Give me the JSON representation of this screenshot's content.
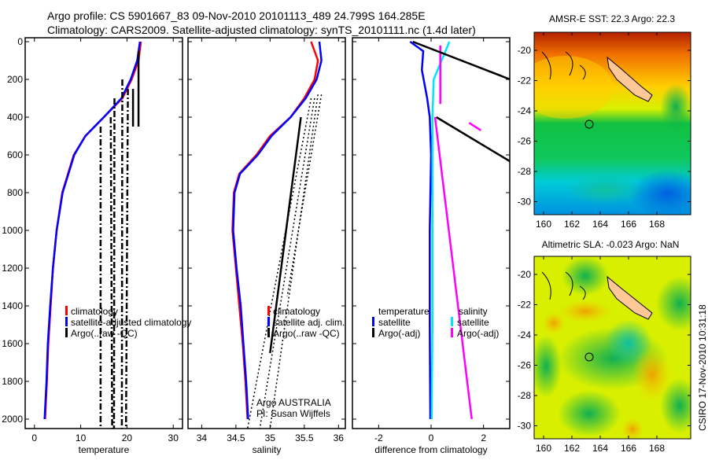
{
  "header": {
    "line1": "Argo profile: CS 5901667_83 09-Nov-2010 20101113_489 24.799S 164.285E",
    "line2": "Climatology: CARS2009. Satellite-adjusted climatology: synTS_20101111.nc (1.4d later)"
  },
  "credit": "CSIRO 17-Nov-2010 10:31:18",
  "colors": {
    "clim": "#ff0000",
    "sat": "#0000ff",
    "argo": "#000000",
    "sal_sat": "#00e5ff",
    "sal_argo": "#ff00ff"
  },
  "chart_data": [
    {
      "type": "line",
      "xlabel": "temperature",
      "xlim": [
        -2,
        32
      ],
      "ylim": [
        2050,
        0
      ],
      "xticks": [
        "0",
        "10",
        "20",
        "30"
      ],
      "xtick_values": [
        0,
        10,
        20,
        30
      ],
      "yticks": [
        "0",
        "200",
        "400",
        "600",
        "800",
        "1000",
        "1200",
        "1400",
        "1600",
        "1800",
        "2000"
      ],
      "ytick_values": [
        0,
        200,
        400,
        600,
        800,
        1000,
        1200,
        1400,
        1600,
        1800,
        2000
      ],
      "legend": [
        "climatology",
        "satellite-adjusted climatology",
        "Argo(..raw -QC)"
      ],
      "series": [
        {
          "name": "climatology",
          "color": "#ff0000",
          "x": [
            23,
            22.5,
            21,
            19,
            15,
            11,
            8.5,
            6,
            4.8,
            4,
            3.5,
            3,
            2.7,
            2.3
          ],
          "y": [
            0,
            100,
            200,
            300,
            400,
            500,
            600,
            800,
            1000,
            1200,
            1400,
            1600,
            1800,
            2000
          ]
        },
        {
          "name": "satellite-adjusted climatology",
          "color": "#0000ff",
          "x": [
            22.8,
            22.2,
            20.8,
            18.8,
            15,
            11,
            8.6,
            6.1,
            4.8,
            4,
            3.4,
            2.9,
            2.6,
            2.2
          ],
          "y": [
            0,
            100,
            200,
            300,
            400,
            500,
            600,
            800,
            1000,
            1200,
            1400,
            1600,
            1800,
            2000
          ]
        },
        {
          "name": "Argo(..raw -QC)",
          "color": "#000000",
          "dash": true,
          "x": [
            14.3,
            14.3
          ],
          "y": [
            450,
            2050
          ]
        },
        {
          "name": "Argo(..raw -QC)",
          "color": "#000000",
          "dash": true,
          "x": [
            16.5,
            16.8
          ],
          "y": [
            400,
            2050
          ]
        },
        {
          "name": "Argo(..raw -QC)",
          "color": "#000000",
          "dash": true,
          "x": [
            17.3,
            17.2
          ],
          "y": [
            300,
            2050
          ]
        },
        {
          "name": "Argo(..raw -QC)",
          "color": "#000000",
          "dash": true,
          "x": [
            19,
            18.9
          ],
          "y": [
            200,
            2050
          ]
        },
        {
          "name": "Argo(..raw -QC)",
          "color": "#000000",
          "dash": true,
          "x": [
            20.2,
            19.8
          ],
          "y": [
            250,
            2050
          ]
        },
        {
          "name": "Argo(..raw -QC)",
          "color": "#000000",
          "x": [
            22.5,
            22.5
          ],
          "y": [
            50,
            450
          ]
        },
        {
          "name": "Argo(..raw -QC)",
          "color": "#000000",
          "x": [
            21.3,
            21.3
          ],
          "y": [
            250,
            450
          ]
        }
      ]
    },
    {
      "type": "line",
      "xlabel": "salinity",
      "xlim": [
        33.8,
        36.1
      ],
      "ylim": [
        2050,
        0
      ],
      "xticks": [
        "34",
        "34.5",
        "35",
        "35.5",
        "36"
      ],
      "xtick_values": [
        34,
        34.5,
        35,
        35.5,
        36
      ],
      "legend": [
        "climatology",
        "satellite adj. clim.",
        "Argo(..raw -QC)"
      ],
      "annotation": [
        "Argo AUSTRALIA",
        "PI: Susan Wijffels"
      ],
      "series": [
        {
          "name": "climatology",
          "color": "#ff0000",
          "x": [
            35.6,
            35.7,
            35.65,
            35.5,
            35.3,
            35.0,
            34.8,
            34.55,
            34.47,
            34.45,
            34.5,
            34.55,
            34.6,
            34.64,
            34.67
          ],
          "y": [
            0,
            100,
            200,
            300,
            400,
            500,
            600,
            700,
            800,
            1000,
            1200,
            1400,
            1600,
            1800,
            2000
          ]
        },
        {
          "name": "satellite adj. clim.",
          "color": "#0000ff",
          "x": [
            35.72,
            35.75,
            35.68,
            35.52,
            35.3,
            35.02,
            34.82,
            34.56,
            34.48,
            34.46,
            34.51,
            34.57,
            34.61,
            34.65,
            34.68
          ],
          "y": [
            0,
            100,
            200,
            300,
            400,
            500,
            600,
            700,
            800,
            1000,
            1200,
            1400,
            1600,
            1800,
            2000
          ]
        },
        {
          "name": "Argo(..raw -QC)",
          "color": "#000000",
          "x": [
            35.45,
            35.0
          ],
          "y": [
            400,
            1650
          ]
        },
        {
          "name": "Argo(..raw -QC)",
          "color": "#000000",
          "dot": true,
          "x": [
            35.6,
            34.67
          ],
          "y": [
            300,
            2050
          ]
        },
        {
          "name": "Argo(..raw -QC)",
          "color": "#000000",
          "dot": true,
          "x": [
            35.65,
            34.85
          ],
          "y": [
            300,
            2050
          ]
        },
        {
          "name": "Argo(..raw -QC)",
          "color": "#000000",
          "dot": true,
          "x": [
            35.7,
            35.0
          ],
          "y": [
            280,
            2050
          ]
        },
        {
          "name": "Argo(..raw -QC)",
          "color": "#000000",
          "dot": true,
          "x": [
            35.75,
            35.25
          ],
          "y": [
            280,
            1350
          ]
        }
      ]
    },
    {
      "type": "line",
      "xlabel": "difference from climatology",
      "xlim": [
        -3,
        3
      ],
      "ylim": [
        2050,
        0
      ],
      "xticks": [
        "-2",
        "0",
        "2"
      ],
      "xtick_values": [
        -2,
        0,
        2
      ],
      "legend_titles": [
        "temperature",
        "salinity"
      ],
      "legend": [
        "satellite",
        "Argo(-adj)",
        "satellite",
        "Argo(-adj)"
      ],
      "series": [
        {
          "name": "temperature satellite",
          "color": "#0000ff",
          "x": [
            -0.8,
            -0.3,
            -0.35,
            -0.15,
            -0.05,
            0,
            -0.05,
            -0.05,
            -0.03
          ],
          "y": [
            0,
            50,
            150,
            300,
            400,
            600,
            1000,
            1500,
            2000
          ]
        },
        {
          "name": "salinity satellite",
          "color": "#00e5ff",
          "x": [
            0.7,
            0.1,
            0.05,
            0.05,
            0.05,
            0.05,
            0.02
          ],
          "y": [
            0,
            200,
            400,
            600,
            1000,
            1500,
            2000
          ]
        },
        {
          "name": "salinity Argo(-adj)",
          "color": "#ff00ff",
          "x": [
            0.35,
            0.35
          ],
          "y": [
            20,
            330
          ]
        },
        {
          "name": "salinity Argo(-adj)",
          "color": "#ff00ff",
          "x": [
            0.15,
            1.55
          ],
          "y": [
            400,
            2000
          ]
        },
        {
          "name": "salinity Argo(-adj)",
          "color": "#ff00ff",
          "x": [
            1.45,
            1.9
          ],
          "y": [
            430,
            470
          ]
        },
        {
          "name": "temperature Argo(-adj)",
          "color": "#000000",
          "x": [
            -0.7,
            3.2
          ],
          "y": [
            0,
            210
          ]
        },
        {
          "name": "temperature Argo(-adj)",
          "color": "#000000",
          "x": [
            0.2,
            3.2
          ],
          "y": [
            400,
            650
          ]
        }
      ]
    }
  ],
  "maps": [
    {
      "title": "AMSR-E SST: 22.3 Argo: 22.3",
      "xticks": [
        "160",
        "162",
        "164",
        "166",
        "168"
      ],
      "yticks": [
        "-20",
        "-22",
        "-24",
        "-26",
        "-28",
        "-30"
      ]
    },
    {
      "title": "Altimetric SLA: -0.023 Argo: NaN",
      "xticks": [
        "160",
        "162",
        "164",
        "166",
        "168"
      ],
      "yticks": [
        "-20",
        "-22",
        "-24",
        "-26",
        "-28",
        "-30"
      ]
    }
  ]
}
